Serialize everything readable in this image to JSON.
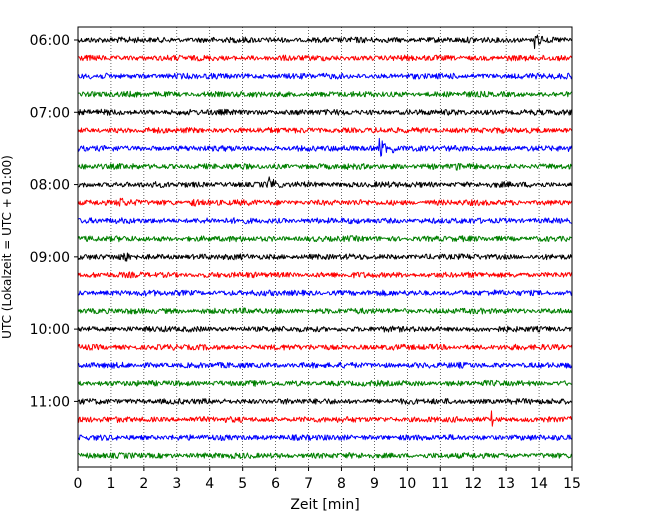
{
  "chart_data": {
    "type": "line",
    "xlabel": "Zeit  [min]",
    "ylabel": "UTC (Lokalzeit = UTC + 01:00)",
    "xlim": [
      0,
      15
    ],
    "x_ticks": [
      "0",
      "1",
      "2",
      "3",
      "4",
      "5",
      "6",
      "7",
      "8",
      "9",
      "10",
      "11",
      "12",
      "13",
      "14",
      "15"
    ],
    "y_ticks": [
      "06:00",
      "07:00",
      "08:00",
      "09:00",
      "10:00",
      "11:00"
    ],
    "grid": "vertical dotted lines at each minute",
    "trace_colors": [
      "#000000",
      "#ff0000",
      "#0000ff",
      "#008000"
    ],
    "series": [
      {
        "start": "06:00",
        "color": "#000000",
        "events": [
          {
            "x": 13.9,
            "amplitude": 1.0
          }
        ]
      },
      {
        "start": "06:15",
        "color": "#ff0000",
        "events": []
      },
      {
        "start": "06:30",
        "color": "#0000ff",
        "events": []
      },
      {
        "start": "06:45",
        "color": "#008000",
        "events": []
      },
      {
        "start": "07:00",
        "color": "#000000",
        "events": []
      },
      {
        "start": "07:15",
        "color": "#ff0000",
        "events": []
      },
      {
        "start": "07:30",
        "color": "#0000ff",
        "events": [
          {
            "x": 9.2,
            "amplitude": 1.0
          },
          {
            "x": 9.6,
            "amplitude": 0.4
          }
        ]
      },
      {
        "start": "07:45",
        "color": "#008000",
        "events": [
          {
            "x": 11.5,
            "amplitude": 0.6
          }
        ]
      },
      {
        "start": "08:00",
        "color": "#000000",
        "events": [
          {
            "x": 5.8,
            "amplitude": 1.0
          }
        ]
      },
      {
        "start": "08:15",
        "color": "#ff0000",
        "events": [
          {
            "x": 1.3,
            "amplitude": 0.3
          },
          {
            "x": 3.5,
            "amplitude": 0.4
          }
        ]
      },
      {
        "start": "08:30",
        "color": "#0000ff",
        "events": []
      },
      {
        "start": "08:45",
        "color": "#008000",
        "events": []
      },
      {
        "start": "09:00",
        "color": "#000000",
        "events": [
          {
            "x": 1.4,
            "amplitude": 0.4
          }
        ]
      },
      {
        "start": "09:15",
        "color": "#ff0000",
        "events": []
      },
      {
        "start": "09:30",
        "color": "#0000ff",
        "events": []
      },
      {
        "start": "09:45",
        "color": "#008000",
        "events": []
      },
      {
        "start": "10:00",
        "color": "#000000",
        "events": []
      },
      {
        "start": "10:15",
        "color": "#ff0000",
        "events": []
      },
      {
        "start": "10:30",
        "color": "#0000ff",
        "events": []
      },
      {
        "start": "10:45",
        "color": "#008000",
        "events": []
      },
      {
        "start": "11:00",
        "color": "#000000",
        "events": []
      },
      {
        "start": "11:15",
        "color": "#ff0000",
        "events": [
          {
            "x": 12.6,
            "amplitude": 0.5
          }
        ]
      },
      {
        "start": "11:30",
        "color": "#0000ff",
        "events": []
      },
      {
        "start": "11:45",
        "color": "#008000",
        "events": []
      }
    ]
  }
}
